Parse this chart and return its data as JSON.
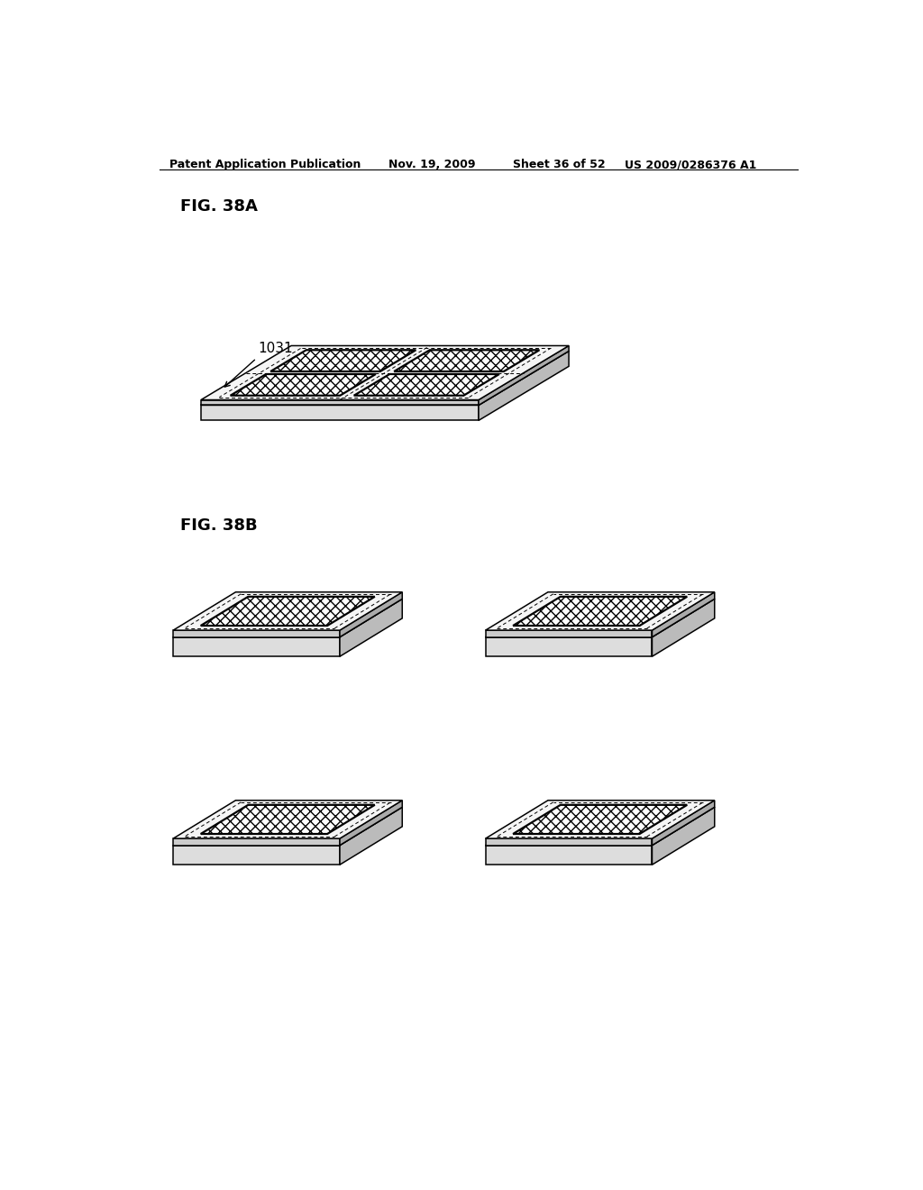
{
  "bg_color": "#ffffff",
  "header_text": "Patent Application Publication",
  "header_date": "Nov. 19, 2009",
  "header_sheet": "Sheet 36 of 52",
  "header_patent": "US 2009/0286376 A1",
  "fig_label_a": "FIG. 38A",
  "fig_label_b": "FIG. 38B",
  "annotation_1031": "1031",
  "line_color": "#000000"
}
